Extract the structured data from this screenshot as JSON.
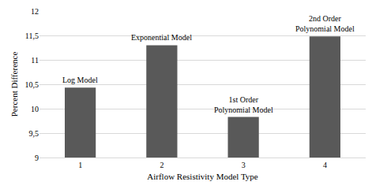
{
  "chart_data": {
    "type": "bar",
    "x_label": "Airflow Resistivity Model Type",
    "y_label": "Percent Difference",
    "categories": [
      "1",
      "2",
      "3",
      "4"
    ],
    "values": [
      10.43,
      11.3,
      9.83,
      11.48
    ],
    "annotations": [
      "Log Model",
      "Exponential Model",
      "1st Order\nPolynomial Model",
      "2nd Order\nPolynomial Model"
    ],
    "color": "#595959",
    "ylim": [
      9,
      12
    ],
    "yticks": [
      9,
      {
        "value": 9.5,
        "label": "9,5"
      },
      10,
      {
        "value": 10.5,
        "label": "10,5"
      },
      11,
      {
        "value": 11.5,
        "label": "11,5"
      },
      12
    ],
    "grid": true
  }
}
